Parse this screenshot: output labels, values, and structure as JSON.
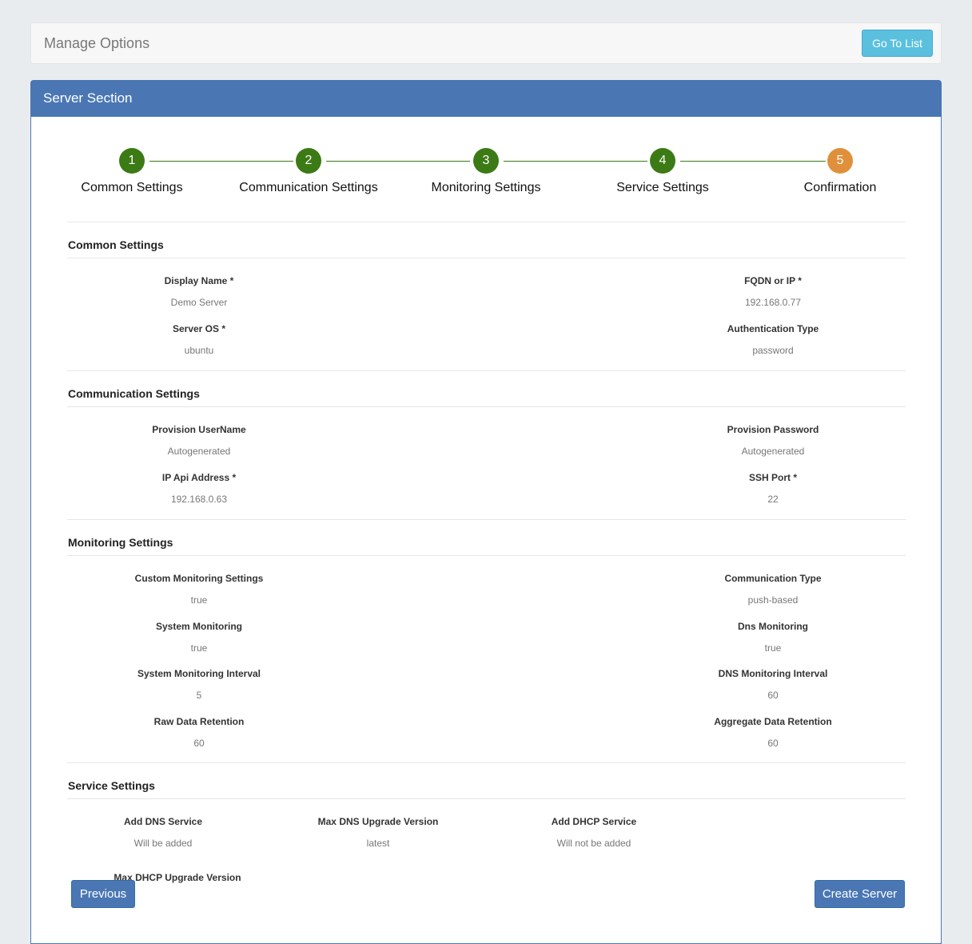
{
  "header": {
    "title": "Manage Options",
    "go_to_list": "Go To List"
  },
  "panel": {
    "title": "Server Section"
  },
  "steps": [
    {
      "num": "1",
      "label": "Common Settings"
    },
    {
      "num": "2",
      "label": "Communication Settings"
    },
    {
      "num": "3",
      "label": "Monitoring Settings"
    },
    {
      "num": "4",
      "label": "Service Settings"
    },
    {
      "num": "5",
      "label": "Confirmation"
    }
  ],
  "colors": {
    "done": "#3c7a15",
    "current": "#e0903a",
    "primary": "#4a77b4"
  },
  "common": {
    "title": "Common Settings",
    "fields": [
      {
        "label": "Display Name *",
        "value": "Demo Server"
      },
      {
        "label": "FQDN or IP *",
        "value": "192.168.0.77"
      },
      {
        "label": "Server OS *",
        "value": "ubuntu"
      },
      {
        "label": "Authentication Type",
        "value": "password"
      }
    ]
  },
  "communication": {
    "title": "Communication Settings",
    "fields": [
      {
        "label": "Provision UserName",
        "value": "Autogenerated"
      },
      {
        "label": "Provision Password",
        "value": "Autogenerated"
      },
      {
        "label": "IP Api Address *",
        "value": "192.168.0.63"
      },
      {
        "label": "SSH Port *",
        "value": "22"
      }
    ]
  },
  "monitoring": {
    "title": "Monitoring Settings",
    "fields": [
      {
        "label": "Custom Monitoring Settings",
        "value": "true"
      },
      {
        "label": "Communication Type",
        "value": "push-based"
      },
      {
        "label": "System Monitoring",
        "value": "true"
      },
      {
        "label": "Dns Monitoring",
        "value": "true"
      },
      {
        "label": "System Monitoring Interval",
        "value": "5"
      },
      {
        "label": "DNS Monitoring Interval",
        "value": "60"
      },
      {
        "label": "Raw Data Retention",
        "value": "60"
      },
      {
        "label": "Aggregate Data Retention",
        "value": "60"
      }
    ]
  },
  "service": {
    "title": "Service Settings",
    "fields": [
      {
        "label": "Add DNS Service",
        "value": "Will be added"
      },
      {
        "label": "Max DNS Upgrade Version",
        "value": "latest"
      },
      {
        "label": "Add DHCP Service",
        "value": "Will not be added"
      },
      {
        "label": "Max DHCP Upgrade Version",
        "value": ""
      }
    ]
  },
  "footer": {
    "previous": "Previous",
    "create": "Create Server"
  }
}
